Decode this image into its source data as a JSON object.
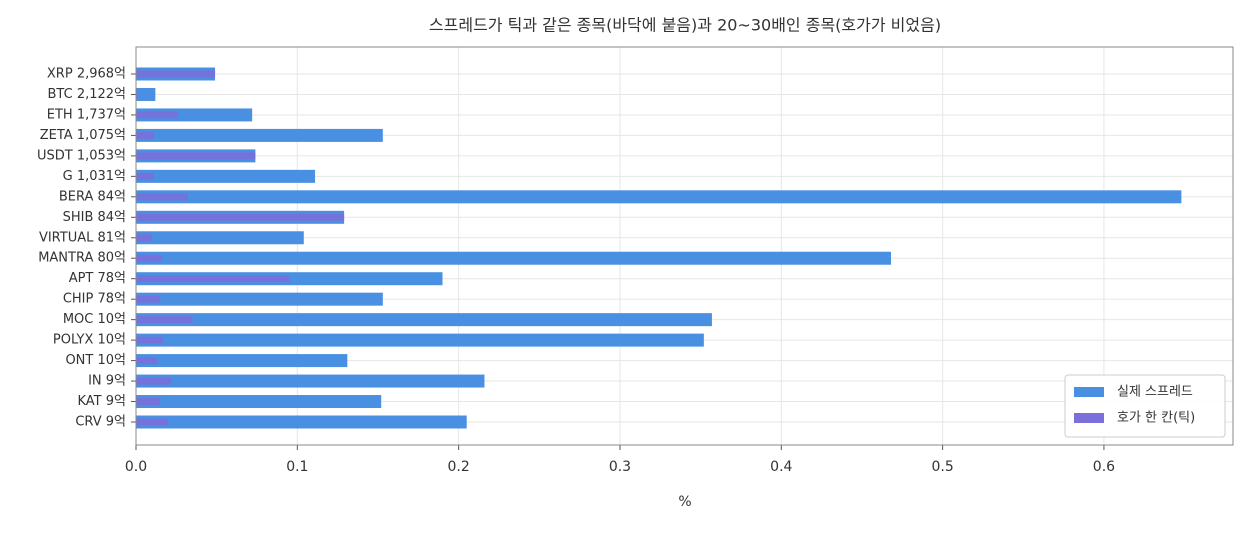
{
  "chart_data": {
    "type": "barh",
    "title": "스프레드가 틱과 같은 종목(바닥에 붙음)과 20~30배인 종목(호가가 비었음)",
    "xlabel": "%",
    "categories": [
      "XRP  2,968억",
      "BTC  2,122억",
      "ETH  1,737억",
      "ZETA  1,075억",
      "USDT  1,053억",
      "G  1,031억",
      "BERA  84억",
      "SHIB  84억",
      "VIRTUAL  81억",
      "MANTRA  80억",
      "APT  78억",
      "CHIP  78억",
      "MOC  10억",
      "POLYX  10억",
      "ONT  10억",
      "IN  9억",
      "KAT  9억",
      "CRV  9억"
    ],
    "series": [
      {
        "name": "실제 스프레드",
        "color": "#4a90e2",
        "values": [
          0.049,
          0.012,
          0.072,
          0.153,
          0.074,
          0.111,
          0.648,
          0.129,
          0.104,
          0.468,
          0.19,
          0.153,
          0.357,
          0.352,
          0.131,
          0.216,
          0.152,
          0.205
        ]
      },
      {
        "name": "호가 한 칸(틱)",
        "color": "#7b6fd9",
        "values": [
          0.049,
          0.001,
          0.026,
          0.011,
          0.074,
          0.011,
          0.032,
          0.129,
          0.01,
          0.016,
          0.095,
          0.015,
          0.035,
          0.017,
          0.013,
          0.022,
          0.015,
          0.02
        ]
      }
    ],
    "xlim": [
      0,
      0.68
    ],
    "xticks": [
      {
        "value": 0,
        "label": "0.0"
      },
      0.1,
      0.2,
      0.3,
      0.4,
      0.5,
      0.6
    ],
    "grid": true,
    "legend": "lower right"
  }
}
